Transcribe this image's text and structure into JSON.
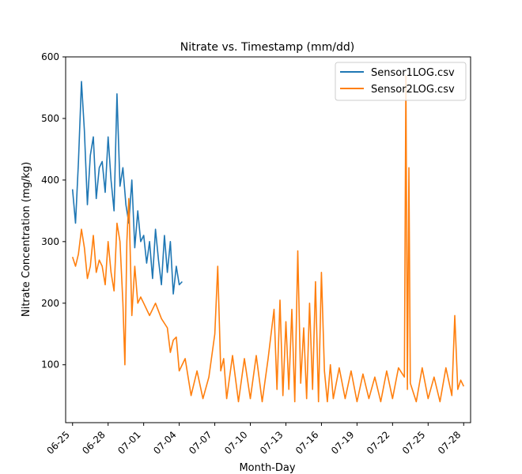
{
  "chart_data": {
    "type": "line",
    "title": "Nitrate vs. Timestamp (mm/dd)",
    "xlabel": "Month-Day",
    "ylabel": "Nitrate Concentration (mg/kg)",
    "xlim": [
      "2024-06-24T10:00",
      "2024-07-28T14:00"
    ],
    "ylim": [
      6,
      600
    ],
    "x_ticks": [
      "2024-06-25",
      "2024-06-28",
      "2024-07-01",
      "2024-07-04",
      "2024-07-07",
      "2024-07-10",
      "2024-07-13",
      "2024-07-16",
      "2024-07-19",
      "2024-07-22",
      "2024-07-25",
      "2024-07-28"
    ],
    "x_tick_labels": [
      "06-25",
      "06-28",
      "07-01",
      "07-04",
      "07-07",
      "07-10",
      "07-13",
      "07-16",
      "07-19",
      "07-22",
      "07-25",
      "07-28"
    ],
    "y_ticks": [
      100,
      200,
      300,
      400,
      500,
      600
    ],
    "y_tick_labels": [
      "100",
      "200",
      "300",
      "400",
      "500",
      "600"
    ],
    "grid": false,
    "legend": "top-right",
    "series": [
      {
        "name": "Sensor1LOG.csv",
        "color": "#1f77b4",
        "x": [
          "2024-06-25T00:00",
          "2024-06-25T06:00",
          "2024-06-25T12:00",
          "2024-06-25T18:00",
          "2024-06-26T00:00",
          "2024-06-26T06:00",
          "2024-06-26T12:00",
          "2024-06-26T18:00",
          "2024-06-27T00:00",
          "2024-06-27T06:00",
          "2024-06-27T12:00",
          "2024-06-27T18:00",
          "2024-06-28T00:00",
          "2024-06-28T06:00",
          "2024-06-28T12:00",
          "2024-06-28T18:00",
          "2024-06-29T00:00",
          "2024-06-29T06:00",
          "2024-06-29T12:00",
          "2024-06-29T18:00",
          "2024-06-30T00:00",
          "2024-06-30T06:00",
          "2024-06-30T12:00",
          "2024-06-30T18:00",
          "2024-07-01T00:00",
          "2024-07-01T06:00",
          "2024-07-01T12:00",
          "2024-07-01T18:00",
          "2024-07-02T00:00",
          "2024-07-02T06:00",
          "2024-07-02T12:00",
          "2024-07-02T18:00",
          "2024-07-03T00:00",
          "2024-07-03T06:00",
          "2024-07-03T12:00",
          "2024-07-03T18:00",
          "2024-07-04T00:00",
          "2024-07-04T06:00"
        ],
        "y": [
          385,
          330,
          430,
          560,
          480,
          360,
          440,
          470,
          370,
          420,
          430,
          380,
          470,
          400,
          350,
          540,
          390,
          420,
          360,
          330,
          400,
          290,
          350,
          300,
          310,
          265,
          300,
          240,
          320,
          270,
          230,
          310,
          250,
          300,
          215,
          260,
          230,
          235
        ]
      },
      {
        "name": "Sensor2LOG.csv",
        "color": "#ff7f0e",
        "x": [
          "2024-06-25T00:00",
          "2024-06-25T06:00",
          "2024-06-25T12:00",
          "2024-06-25T18:00",
          "2024-06-26T00:00",
          "2024-06-26T06:00",
          "2024-06-26T12:00",
          "2024-06-26T18:00",
          "2024-06-27T00:00",
          "2024-06-27T06:00",
          "2024-06-27T12:00",
          "2024-06-27T18:00",
          "2024-06-28T00:00",
          "2024-06-28T06:00",
          "2024-06-28T12:00",
          "2024-06-28T18:00",
          "2024-06-29T00:00",
          "2024-06-29T06:00",
          "2024-06-29T10:00",
          "2024-06-29T14:00",
          "2024-06-29T18:00",
          "2024-06-30T00:00",
          "2024-06-30T06:00",
          "2024-06-30T12:00",
          "2024-06-30T18:00",
          "2024-07-01T00:00",
          "2024-07-01T12:00",
          "2024-07-02T00:00",
          "2024-07-02T12:00",
          "2024-07-03T00:00",
          "2024-07-03T06:00",
          "2024-07-03T12:00",
          "2024-07-03T18:00",
          "2024-07-04T00:00",
          "2024-07-04T12:00",
          "2024-07-05T00:00",
          "2024-07-05T12:00",
          "2024-07-06T00:00",
          "2024-07-06T12:00",
          "2024-07-07T00:00",
          "2024-07-07T06:00",
          "2024-07-07T12:00",
          "2024-07-07T18:00",
          "2024-07-08T00:00",
          "2024-07-08T12:00",
          "2024-07-09T00:00",
          "2024-07-09T12:00",
          "2024-07-10T00:00",
          "2024-07-10T12:00",
          "2024-07-11T00:00",
          "2024-07-11T12:00",
          "2024-07-12T00:00",
          "2024-07-12T06:00",
          "2024-07-12T12:00",
          "2024-07-12T18:00",
          "2024-07-13T00:00",
          "2024-07-13T06:00",
          "2024-07-13T12:00",
          "2024-07-13T18:00",
          "2024-07-14T00:00",
          "2024-07-14T06:00",
          "2024-07-14T12:00",
          "2024-07-14T18:00",
          "2024-07-15T00:00",
          "2024-07-15T06:00",
          "2024-07-15T12:00",
          "2024-07-15T18:00",
          "2024-07-16T00:00",
          "2024-07-16T06:00",
          "2024-07-16T12:00",
          "2024-07-16T18:00",
          "2024-07-17T00:00",
          "2024-07-17T12:00",
          "2024-07-18T00:00",
          "2024-07-18T12:00",
          "2024-07-19T00:00",
          "2024-07-19T12:00",
          "2024-07-20T00:00",
          "2024-07-20T12:00",
          "2024-07-21T00:00",
          "2024-07-21T12:00",
          "2024-07-22T00:00",
          "2024-07-22T12:00",
          "2024-07-23T00:00",
          "2024-07-23T03:00",
          "2024-07-23T06:00",
          "2024-07-23T09:00",
          "2024-07-23T12:00",
          "2024-07-24T00:00",
          "2024-07-24T12:00",
          "2024-07-25T00:00",
          "2024-07-25T12:00",
          "2024-07-26T00:00",
          "2024-07-26T12:00",
          "2024-07-27T00:00",
          "2024-07-27T06:00",
          "2024-07-27T12:00",
          "2024-07-27T18:00",
          "2024-07-28T00:00"
        ],
        "y": [
          275,
          260,
          280,
          320,
          290,
          240,
          260,
          310,
          250,
          270,
          260,
          230,
          300,
          250,
          220,
          330,
          300,
          200,
          100,
          300,
          370,
          180,
          260,
          200,
          210,
          200,
          180,
          200,
          175,
          160,
          120,
          140,
          145,
          90,
          110,
          50,
          90,
          45,
          80,
          150,
          260,
          90,
          110,
          45,
          115,
          40,
          110,
          45,
          115,
          40,
          110,
          190,
          60,
          205,
          50,
          170,
          60,
          190,
          40,
          285,
          70,
          160,
          45,
          200,
          60,
          235,
          40,
          250,
          90,
          40,
          100,
          45,
          95,
          45,
          90,
          40,
          85,
          45,
          80,
          40,
          90,
          45,
          95,
          80,
          570,
          60,
          420,
          70,
          40,
          95,
          45,
          80,
          40,
          95,
          50,
          180,
          60,
          75,
          65
        ]
      }
    ]
  }
}
